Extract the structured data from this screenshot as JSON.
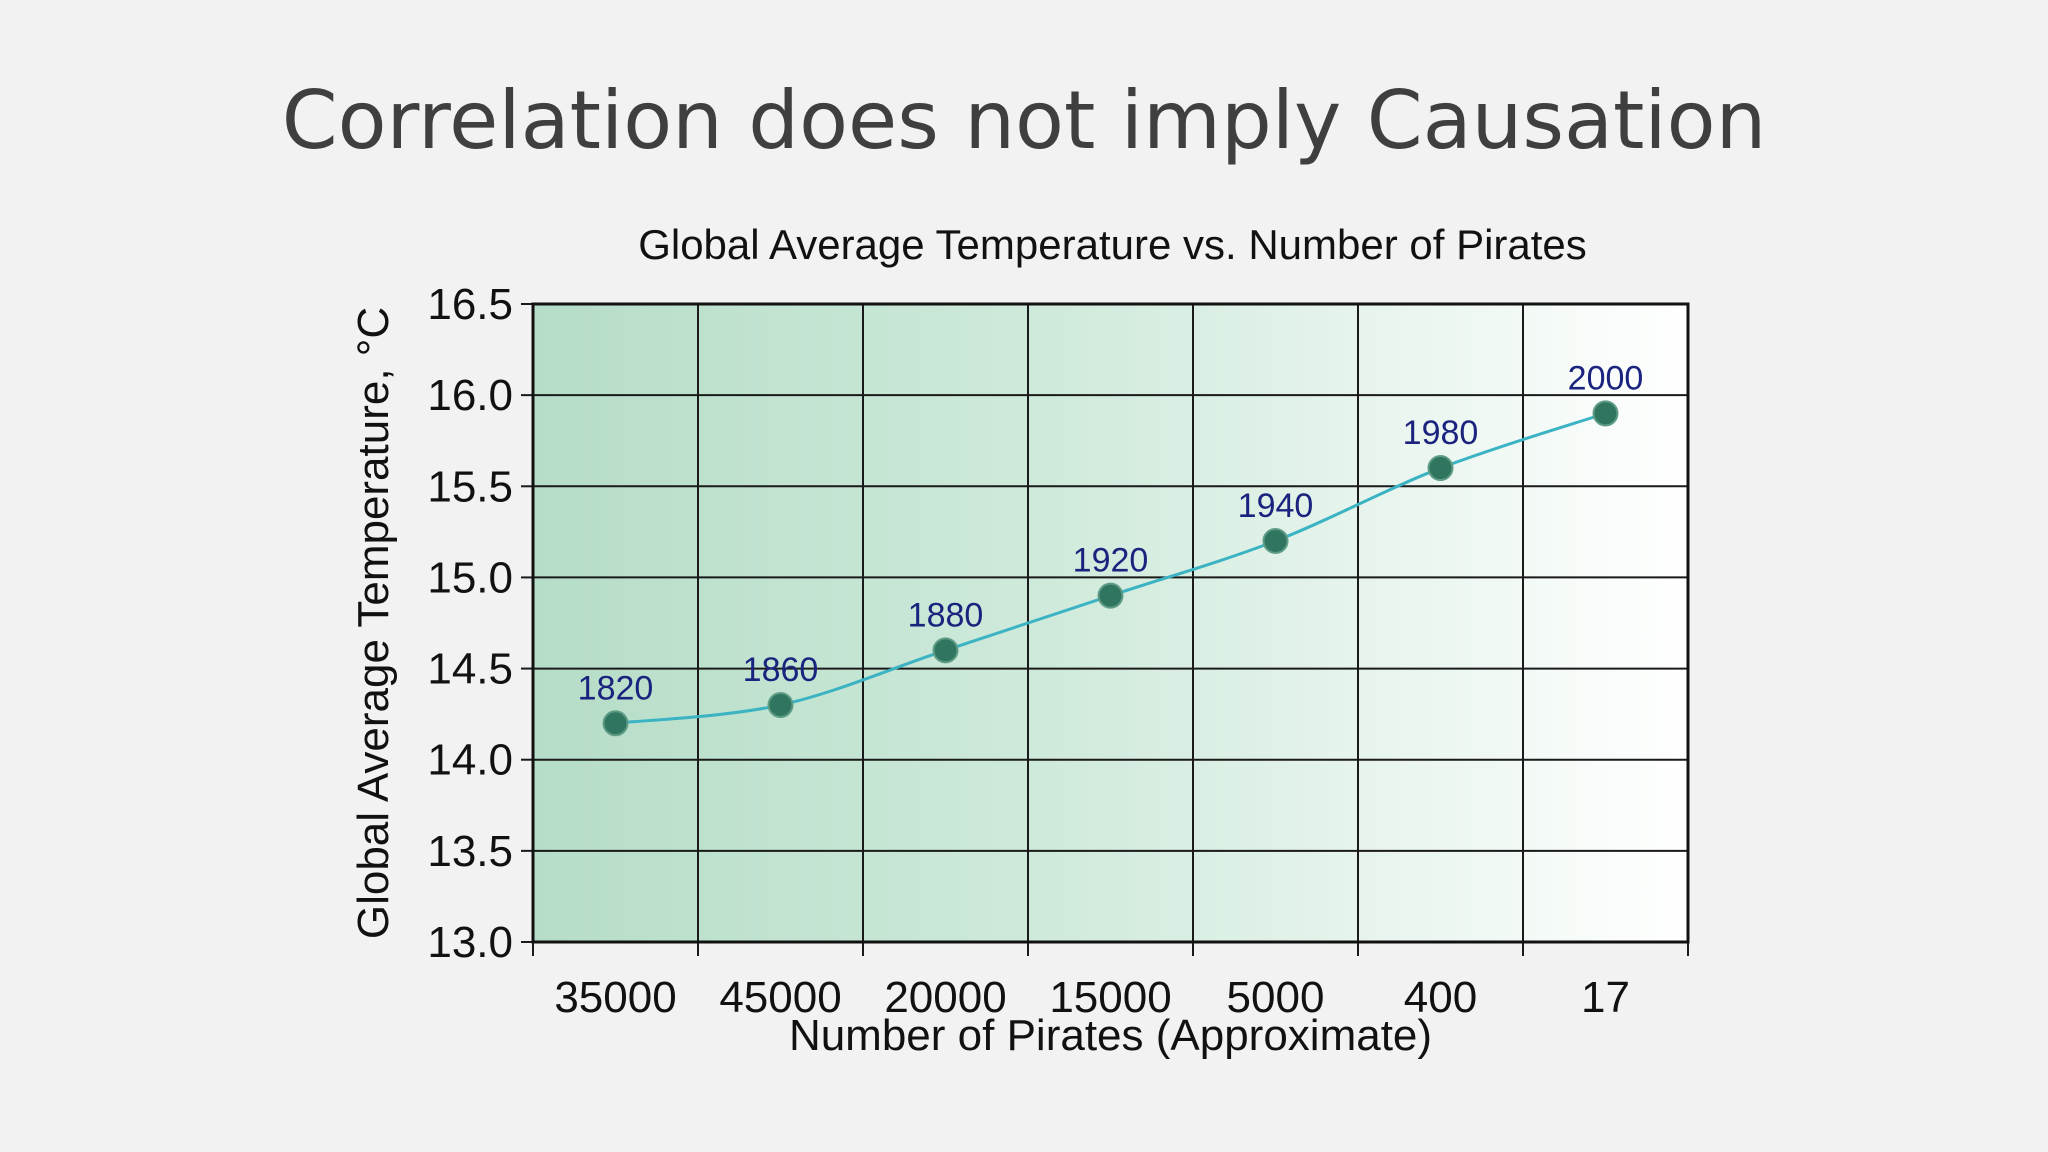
{
  "slide": {
    "title": "Correlation does not imply Causation"
  },
  "colors": {
    "background": "#f2f2f2",
    "gradient_start": "#b5ddc7",
    "gradient_end": "#ffffff",
    "line": "#3bb3c3",
    "marker": "#2f7560",
    "data_label": "#1a237e"
  },
  "chart_data": {
    "type": "line",
    "title": "Global Average Temperature vs. Number of Pirates",
    "xlabel": "Number of Pirates (Approximate)",
    "ylabel": "Global Average Temperature, °C",
    "categories": [
      "35000",
      "45000",
      "20000",
      "15000",
      "5000",
      "400",
      "17"
    ],
    "series": [
      {
        "values": [
          14.2,
          14.3,
          14.6,
          14.9,
          15.2,
          15.6,
          15.9
        ],
        "point_labels": [
          "1820",
          "1860",
          "1880",
          "1920",
          "1940",
          "1980",
          "2000"
        ]
      }
    ],
    "yticks": [
      "13.0",
      "13.5",
      "14.0",
      "14.5",
      "15.0",
      "15.5",
      "16.0",
      "16.5"
    ],
    "ylim": [
      13.0,
      16.5
    ],
    "grid": true,
    "legend": "none"
  }
}
